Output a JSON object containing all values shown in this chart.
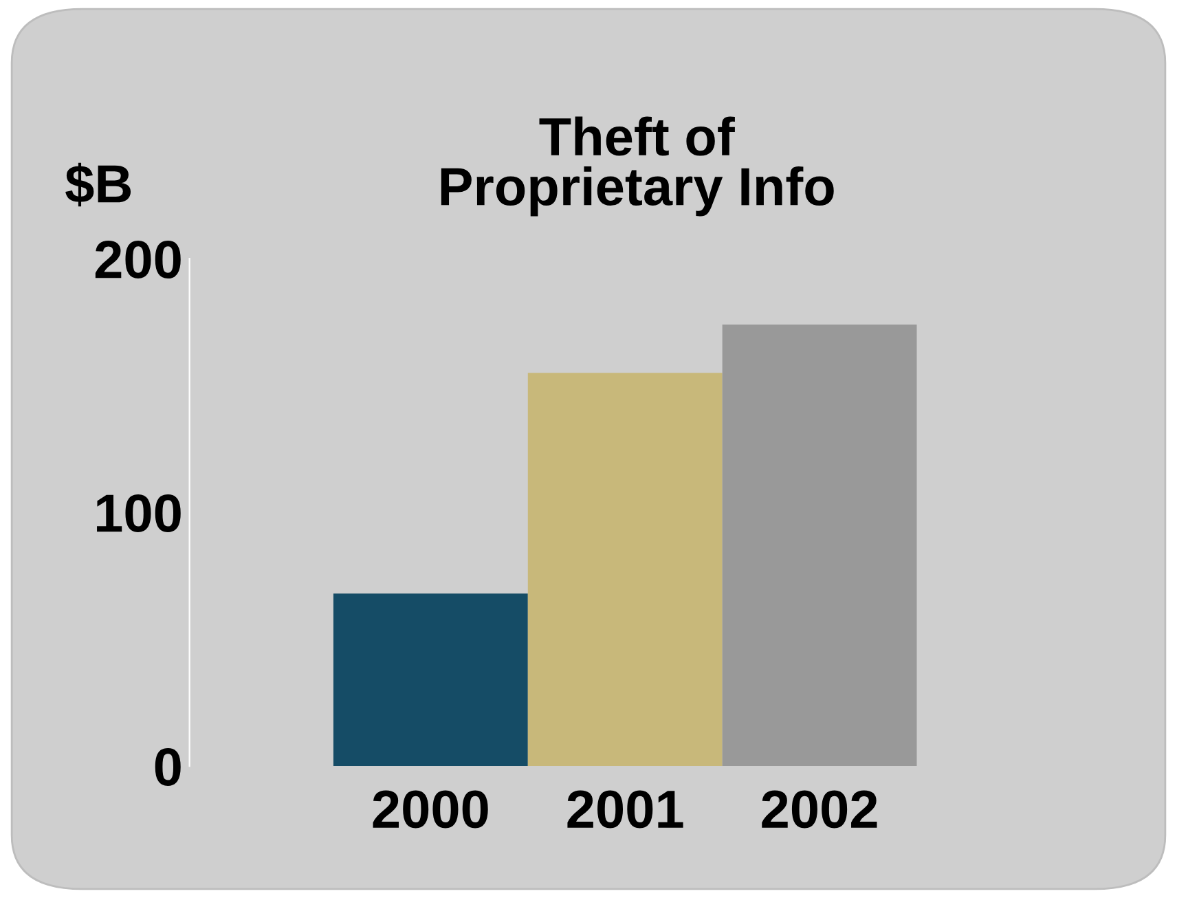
{
  "chart_data": {
    "type": "bar",
    "title": "Theft of\nProprietary Info",
    "ylabel": "$B",
    "categories": [
      "2000",
      "2001",
      "2002"
    ],
    "values": [
      68,
      155,
      174
    ],
    "colors": [
      "#154c66",
      "#c8b87a",
      "#999999"
    ],
    "ylim": [
      0,
      200
    ],
    "yticks": [
      0,
      100,
      200
    ],
    "grid": false,
    "legend": false
  }
}
